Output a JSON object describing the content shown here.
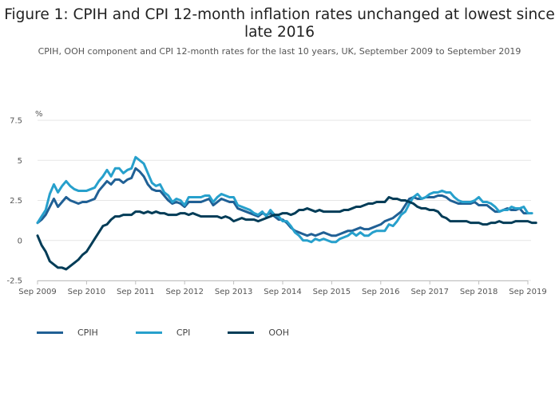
{
  "title": "Figure 1: CPIH and CPI 12-month inflation rates unchanged at lowest since late 2016",
  "subtitle": "CPIH, OOH component and CPI 12-month rates for the last 10 years, UK, September 2009 to September 2019",
  "chart_data": {
    "type": "line",
    "title": "Figure 1: CPIH and CPI 12-month inflation rates unchanged at lowest since late 2016",
    "subtitle": "CPIH, OOH component and CPI 12-month rates for the last 10 years, UK, September 2009 to September 2019",
    "xlabel": "",
    "ylabel": "%",
    "ylim": [
      -2.5,
      7.5
    ],
    "yticks": [
      -2.5,
      0,
      2.5,
      5,
      7.5
    ],
    "ytick_labels": [
      "-2.5",
      "0",
      "2.5",
      "5",
      "7.5"
    ],
    "xticks": [
      "Sep 2009",
      "Sep 2010",
      "Sep 2011",
      "Sep 2012",
      "Sep 2013",
      "Sep 2014",
      "Sep 2015",
      "Sep 2016",
      "Sep 2017",
      "Sep 2018",
      "Sep 2019"
    ],
    "x_start": "Sep 2009",
    "x_end": "Sep 2019",
    "frequency": "monthly",
    "grid": true,
    "legend_position": "bottom-left",
    "series": [
      {
        "name": "CPIH",
        "color": "#206095",
        "values": [
          1.1,
          1.3,
          1.6,
          2.1,
          2.6,
          2.1,
          2.4,
          2.7,
          2.5,
          2.4,
          2.3,
          2.4,
          2.4,
          2.5,
          2.6,
          3.1,
          3.4,
          3.7,
          3.5,
          3.8,
          3.8,
          3.6,
          3.8,
          3.9,
          4.5,
          4.3,
          4.0,
          3.5,
          3.2,
          3.1,
          3.1,
          2.8,
          2.5,
          2.3,
          2.4,
          2.3,
          2.1,
          2.4,
          2.4,
          2.4,
          2.4,
          2.5,
          2.6,
          2.2,
          2.4,
          2.6,
          2.5,
          2.4,
          2.4,
          2.0,
          1.9,
          1.8,
          1.7,
          1.6,
          1.5,
          1.7,
          1.6,
          1.7,
          1.5,
          1.3,
          1.3,
          1.1,
          0.8,
          0.6,
          0.5,
          0.4,
          0.3,
          0.4,
          0.3,
          0.4,
          0.5,
          0.4,
          0.3,
          0.3,
          0.4,
          0.5,
          0.6,
          0.6,
          0.7,
          0.8,
          0.7,
          0.7,
          0.8,
          0.9,
          1.0,
          1.2,
          1.3,
          1.4,
          1.6,
          1.8,
          2.2,
          2.6,
          2.7,
          2.6,
          2.6,
          2.7,
          2.7,
          2.7,
          2.8,
          2.8,
          2.7,
          2.5,
          2.4,
          2.3,
          2.3,
          2.3,
          2.3,
          2.4,
          2.2,
          2.2,
          2.2,
          2.0,
          1.8,
          1.8,
          1.9,
          2.0,
          1.9,
          1.9,
          2.0,
          1.7,
          1.7
        ]
      },
      {
        "name": "CPI",
        "color": "#27a0cc",
        "values": [
          1.1,
          1.5,
          1.9,
          2.9,
          3.5,
          3.0,
          3.4,
          3.7,
          3.4,
          3.2,
          3.1,
          3.1,
          3.1,
          3.2,
          3.3,
          3.7,
          4.0,
          4.4,
          4.0,
          4.5,
          4.5,
          4.2,
          4.4,
          4.5,
          5.2,
          5.0,
          4.8,
          4.2,
          3.6,
          3.4,
          3.5,
          3.0,
          2.8,
          2.4,
          2.6,
          2.5,
          2.2,
          2.7,
          2.7,
          2.7,
          2.7,
          2.8,
          2.8,
          2.4,
          2.7,
          2.9,
          2.8,
          2.7,
          2.7,
          2.2,
          2.1,
          2.0,
          1.9,
          1.7,
          1.6,
          1.8,
          1.5,
          1.9,
          1.6,
          1.5,
          1.2,
          1.2,
          0.9,
          0.5,
          0.3,
          0.0,
          0.0,
          -0.1,
          0.1,
          0.0,
          0.1,
          0.0,
          -0.1,
          -0.1,
          0.1,
          0.2,
          0.3,
          0.5,
          0.3,
          0.5,
          0.3,
          0.3,
          0.5,
          0.6,
          0.6,
          0.6,
          1.0,
          0.9,
          1.2,
          1.6,
          1.8,
          2.3,
          2.7,
          2.9,
          2.6,
          2.7,
          2.9,
          3.0,
          3.0,
          3.1,
          3.0,
          3.0,
          2.7,
          2.5,
          2.4,
          2.4,
          2.4,
          2.5,
          2.7,
          2.4,
          2.4,
          2.3,
          2.1,
          1.8,
          1.9,
          1.9,
          2.1,
          2.0,
          2.0,
          2.1,
          1.7,
          1.7
        ]
      },
      {
        "name": "OOH",
        "color": "#003c57",
        "values": [
          0.3,
          -0.3,
          -0.7,
          -1.3,
          -1.5,
          -1.7,
          -1.7,
          -1.8,
          -1.6,
          -1.4,
          -1.2,
          -0.9,
          -0.7,
          -0.3,
          0.1,
          0.5,
          0.9,
          1.0,
          1.3,
          1.5,
          1.5,
          1.6,
          1.6,
          1.6,
          1.8,
          1.8,
          1.7,
          1.8,
          1.7,
          1.8,
          1.7,
          1.7,
          1.6,
          1.6,
          1.6,
          1.7,
          1.7,
          1.6,
          1.7,
          1.6,
          1.5,
          1.5,
          1.5,
          1.5,
          1.5,
          1.4,
          1.5,
          1.4,
          1.2,
          1.3,
          1.4,
          1.3,
          1.3,
          1.3,
          1.2,
          1.3,
          1.4,
          1.5,
          1.6,
          1.6,
          1.7,
          1.7,
          1.6,
          1.7,
          1.9,
          1.9,
          2.0,
          1.9,
          1.8,
          1.9,
          1.8,
          1.8,
          1.8,
          1.8,
          1.8,
          1.9,
          1.9,
          2.0,
          2.1,
          2.1,
          2.2,
          2.3,
          2.3,
          2.4,
          2.4,
          2.4,
          2.7,
          2.6,
          2.6,
          2.5,
          2.5,
          2.4,
          2.3,
          2.1,
          2.0,
          2.0,
          1.9,
          1.9,
          1.8,
          1.5,
          1.4,
          1.2,
          1.2,
          1.2,
          1.2,
          1.2,
          1.1,
          1.1,
          1.1,
          1.0,
          1.0,
          1.1,
          1.1,
          1.2,
          1.1,
          1.1,
          1.1,
          1.2,
          1.2,
          1.2,
          1.2,
          1.1,
          1.1
        ]
      }
    ]
  }
}
